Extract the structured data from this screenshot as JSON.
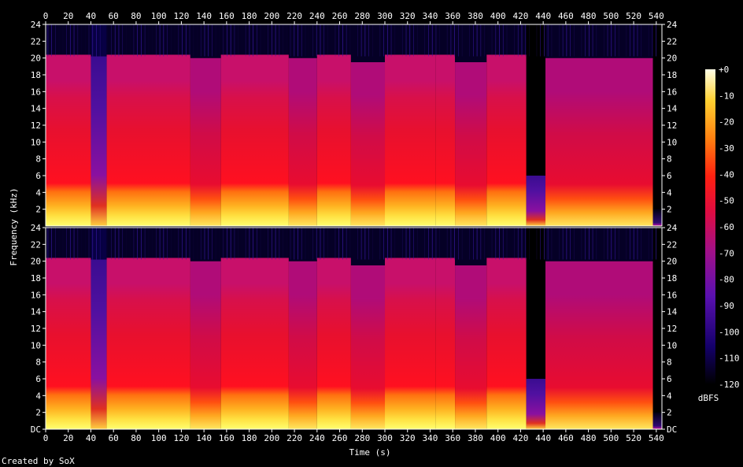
{
  "chart_data": {
    "type": "heatmap",
    "title": "",
    "xlabel": "Time (s)",
    "ylabel": "Frequency (kHz)",
    "xlim": [
      0,
      545
    ],
    "ylim_khz": [
      0,
      24
    ],
    "x_ticks": [
      0,
      20,
      40,
      60,
      80,
      100,
      120,
      140,
      160,
      180,
      200,
      220,
      240,
      260,
      280,
      300,
      320,
      340,
      360,
      380,
      400,
      420,
      440,
      460,
      480,
      500,
      520,
      540
    ],
    "y_tick_labels_top_channel": [
      "24",
      "22",
      "20",
      "18",
      "16",
      "14",
      "12",
      "10",
      "8",
      "6",
      "4",
      "2"
    ],
    "y_tick_labels_bottom_channel": [
      "24",
      "22",
      "20",
      "18",
      "16",
      "14",
      "12",
      "10",
      "8",
      "6",
      "4",
      "2",
      "DC"
    ],
    "channels": [
      {
        "id": "ch1"
      },
      {
        "id": "ch2"
      }
    ],
    "colorbar": {
      "unit": "dBFS",
      "range": [
        -120,
        0
      ],
      "tick_labels": [
        "+0",
        "-10",
        "-20",
        "-30",
        "-40",
        "-50",
        "-60",
        "-70",
        "-80",
        "-90",
        "-100",
        "-110",
        "-120"
      ]
    },
    "segments": [
      {
        "start": 0,
        "end": 40,
        "cutoff_khz": 20.4,
        "level": "loud"
      },
      {
        "start": 40,
        "end": 54,
        "cutoff_khz": 20.2,
        "level": "quiet"
      },
      {
        "start": 54,
        "end": 128,
        "cutoff_khz": 20.4,
        "level": "loud"
      },
      {
        "start": 128,
        "end": 155,
        "cutoff_khz": 20.0,
        "level": "mid"
      },
      {
        "start": 155,
        "end": 215,
        "cutoff_khz": 20.4,
        "level": "loud"
      },
      {
        "start": 215,
        "end": 240,
        "cutoff_khz": 20.0,
        "level": "mid"
      },
      {
        "start": 240,
        "end": 270,
        "cutoff_khz": 20.4,
        "level": "loud"
      },
      {
        "start": 270,
        "end": 300,
        "cutoff_khz": 19.5,
        "level": "mid"
      },
      {
        "start": 300,
        "end": 345,
        "cutoff_khz": 20.4,
        "level": "loud"
      },
      {
        "start": 345,
        "end": 362,
        "cutoff_khz": 20.4,
        "level": "loud"
      },
      {
        "start": 362,
        "end": 390,
        "cutoff_khz": 19.5,
        "level": "mid"
      },
      {
        "start": 390,
        "end": 425,
        "cutoff_khz": 20.4,
        "level": "loud"
      },
      {
        "start": 425,
        "end": 442,
        "cutoff_khz": 6.0,
        "level": "quiet"
      },
      {
        "start": 442,
        "end": 537,
        "cutoff_khz": 20.0,
        "level": "mid"
      },
      {
        "start": 537,
        "end": 545,
        "cutoff_khz": 2.0,
        "level": "fade"
      }
    ],
    "footer": "Created by SoX"
  }
}
